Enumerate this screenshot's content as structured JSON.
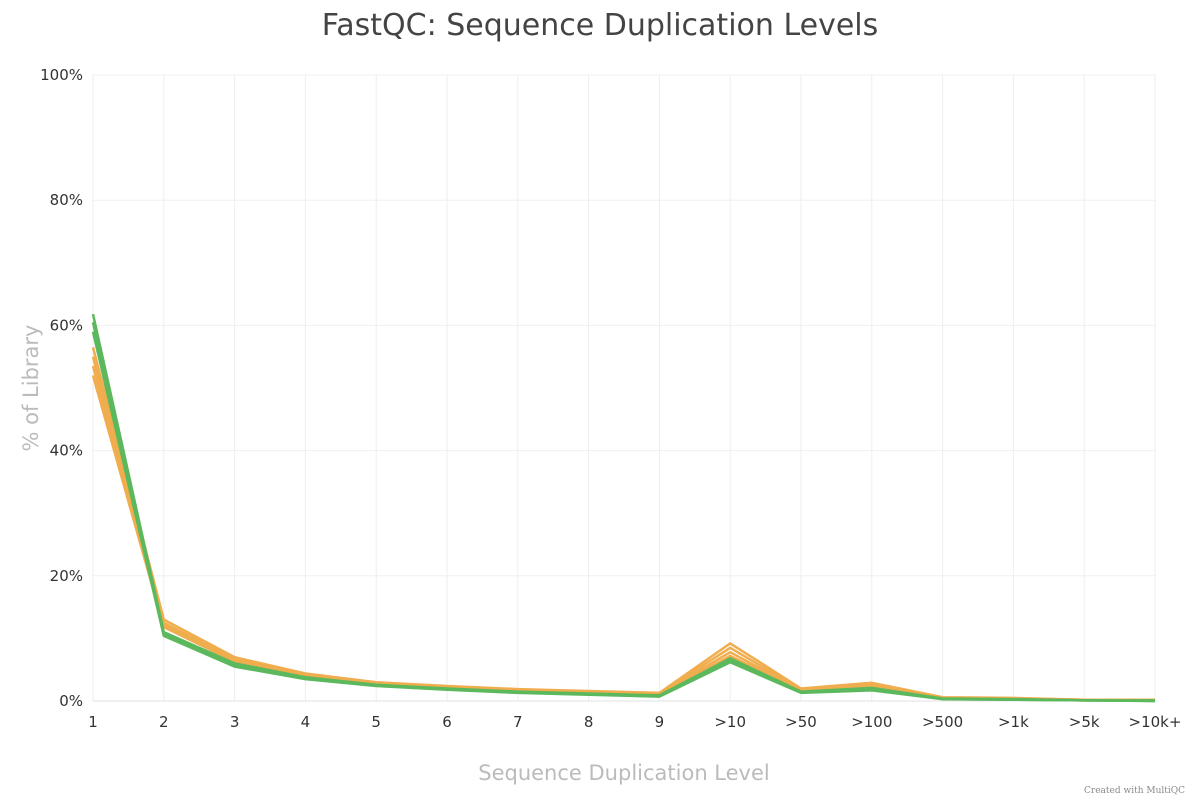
{
  "chart_data": {
    "type": "line",
    "title": "FastQC: Sequence Duplication Levels",
    "xlabel": "Sequence Duplication Level",
    "ylabel": "% of Library",
    "ylim": [
      0,
      100
    ],
    "y_ticks": [
      "0%",
      "20%",
      "40%",
      "60%",
      "80%",
      "100%"
    ],
    "y_tick_values": [
      0,
      20,
      40,
      60,
      80,
      100
    ],
    "categories": [
      "1",
      "2",
      "3",
      "4",
      "5",
      "6",
      "7",
      "8",
      "9",
      ">10",
      ">50",
      ">100",
      ">500",
      ">1k",
      ">5k",
      ">10k+"
    ],
    "grid": true,
    "legend": false,
    "series": [
      {
        "color": "#f0ad4e",
        "values": [
          56.5,
          13.0,
          7.0,
          4.4,
          3.0,
          2.4,
          1.9,
          1.6,
          1.3,
          9.2,
          2.0,
          2.9,
          0.6,
          0.5,
          0.2,
          0.2
        ]
      },
      {
        "color": "#f0ad4e",
        "values": [
          55.0,
          12.5,
          6.7,
          4.2,
          2.9,
          2.3,
          1.8,
          1.5,
          1.2,
          8.5,
          1.8,
          2.6,
          0.5,
          0.4,
          0.2,
          0.1
        ]
      },
      {
        "color": "#f0ad4e",
        "values": [
          53.5,
          12.2,
          6.5,
          4.1,
          2.8,
          2.2,
          1.7,
          1.4,
          1.1,
          7.8,
          1.7,
          2.4,
          0.5,
          0.4,
          0.2,
          0.1
        ]
      },
      {
        "color": "#f0ad4e",
        "values": [
          52.0,
          11.8,
          6.3,
          4.0,
          2.7,
          2.1,
          1.6,
          1.3,
          1.0,
          7.2,
          1.6,
          2.2,
          0.4,
          0.3,
          0.1,
          0.1
        ]
      },
      {
        "color": "#5cb85c",
        "values": [
          61.8,
          11.0,
          6.0,
          3.8,
          2.6,
          2.0,
          1.5,
          1.2,
          0.9,
          6.8,
          1.5,
          2.1,
          0.4,
          0.3,
          0.1,
          0.1
        ]
      },
      {
        "color": "#5cb85c",
        "values": [
          60.5,
          10.7,
          5.8,
          3.6,
          2.5,
          1.9,
          1.4,
          1.1,
          0.8,
          6.5,
          1.4,
          1.9,
          0.3,
          0.2,
          0.1,
          0.0
        ]
      },
      {
        "color": "#5cb85c",
        "values": [
          59.0,
          10.4,
          5.5,
          3.5,
          2.4,
          1.8,
          1.3,
          1.0,
          0.7,
          6.2,
          1.3,
          1.7,
          0.3,
          0.2,
          0.1,
          0.0
        ]
      }
    ]
  },
  "footer": {
    "credit": "Created with MultiQC"
  }
}
